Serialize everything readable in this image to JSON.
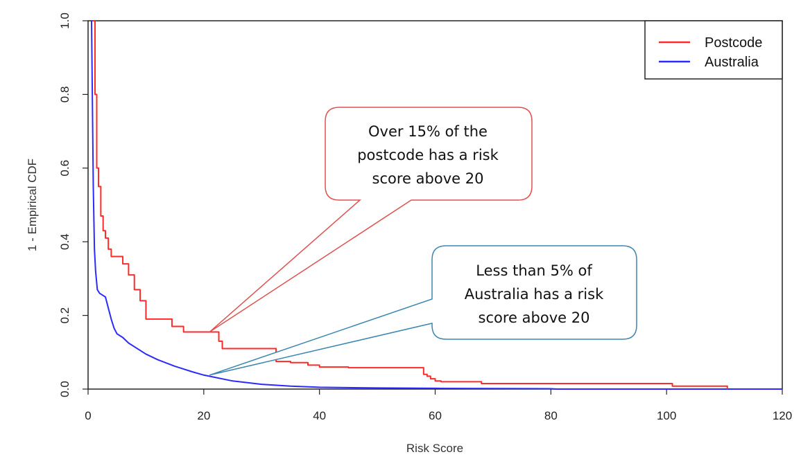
{
  "chart_data": {
    "type": "line",
    "xlabel": "Risk Score",
    "ylabel": "1 - Empirical CDF",
    "xlim": [
      0,
      120
    ],
    "ylim": [
      0,
      1
    ],
    "x_ticks": [
      0,
      20,
      40,
      60,
      80,
      100,
      120
    ],
    "y_ticks": [
      "0.0",
      "0.2",
      "0.4",
      "0.6",
      "0.8",
      "1.0"
    ],
    "legend": {
      "position": "top-right",
      "entries": [
        {
          "name": "Postcode",
          "color": "#ff2a2a"
        },
        {
          "name": "Australia",
          "color": "#2a2aff"
        }
      ]
    },
    "series": [
      {
        "name": "Postcode",
        "color": "#ff2a2a",
        "style": "step",
        "x": [
          0.8,
          1.2,
          1.5,
          1.8,
          2.2,
          2.6,
          3.0,
          3.5,
          4.0,
          5.0,
          6.0,
          7.0,
          8.0,
          9.0,
          10.0,
          12.0,
          14.5,
          16.5,
          20.0,
          22.0,
          22.6,
          23.2,
          31.5,
          32.5,
          35.0,
          38.0,
          40.0,
          45.0,
          58.0,
          58.6,
          59.2,
          60.0,
          61.0,
          68.0,
          101.0,
          110.5
        ],
        "y": [
          1.0,
          0.8,
          0.6,
          0.55,
          0.47,
          0.43,
          0.41,
          0.38,
          0.36,
          0.36,
          0.34,
          0.31,
          0.27,
          0.24,
          0.19,
          0.19,
          0.17,
          0.155,
          0.155,
          0.155,
          0.13,
          0.11,
          0.11,
          0.075,
          0.072,
          0.065,
          0.06,
          0.058,
          0.04,
          0.035,
          0.028,
          0.022,
          0.02,
          0.015,
          0.008,
          0.0
        ]
      },
      {
        "name": "Australia",
        "color": "#2a2aff",
        "style": "line",
        "x": [
          0.6,
          0.9,
          1.1,
          1.3,
          1.6,
          2.0,
          2.5,
          3.0,
          3.5,
          4.0,
          4.5,
          5.0,
          6.0,
          7.0,
          8.0,
          10.0,
          12.0,
          15.0,
          18.0,
          20.0,
          25.0,
          30.0,
          35.0,
          40.0,
          50.0,
          60.0,
          80.0,
          81.0,
          120.0
        ],
        "y": [
          1.0,
          0.55,
          0.38,
          0.32,
          0.27,
          0.26,
          0.255,
          0.25,
          0.22,
          0.19,
          0.165,
          0.15,
          0.14,
          0.125,
          0.115,
          0.095,
          0.08,
          0.062,
          0.047,
          0.038,
          0.022,
          0.013,
          0.008,
          0.005,
          0.003,
          0.002,
          0.001,
          0.0,
          0.0
        ]
      }
    ],
    "annotations": [
      {
        "color": "#e05050",
        "lines": [
          "Over 15% of the",
          "postcode has a risk",
          "score above 20"
        ],
        "target": [
          21,
          0.155
        ]
      },
      {
        "color": "#3a86b0",
        "lines": [
          "Less than 5% of",
          "Australia has a risk",
          "score above 20"
        ],
        "target": [
          21,
          0.038
        ]
      }
    ]
  }
}
